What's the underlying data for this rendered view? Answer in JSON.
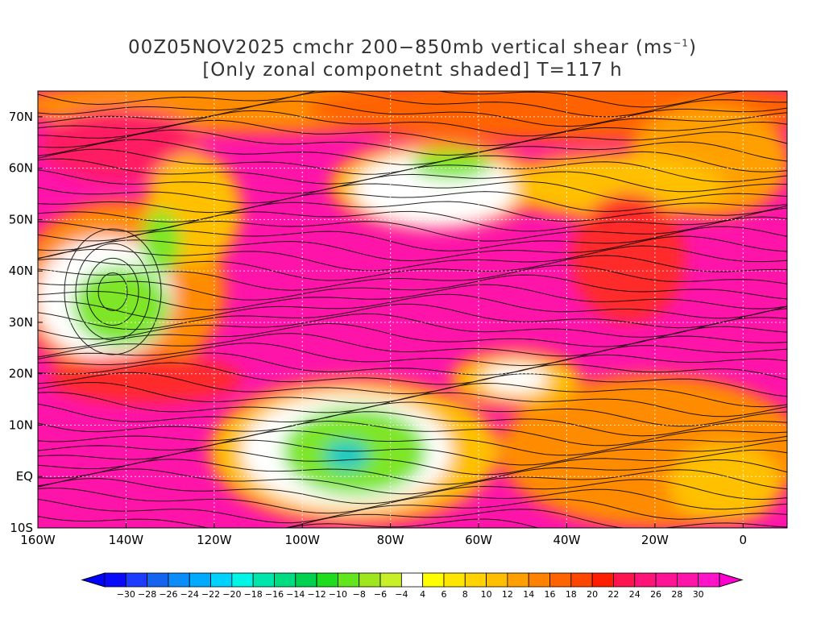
{
  "title": {
    "line1_prefix": "00Z05NOV2025 cmchr 200−850mb vertical shear (ms",
    "line1_sup": "−1",
    "line1_suffix": ")",
    "line2": "[Only zonal componetnt shaded] T=117 h"
  },
  "axes": {
    "lat_labels": [
      "70N",
      "60N",
      "50N",
      "40N",
      "30N",
      "20N",
      "10N",
      "EQ",
      "10S"
    ],
    "lat_values": [
      70,
      60,
      50,
      40,
      30,
      20,
      10,
      0,
      -10
    ],
    "lon_labels": [
      "160W",
      "140W",
      "120W",
      "100W",
      "80W",
      "60W",
      "40W",
      "20W",
      "0"
    ],
    "lon_values": [
      -160,
      -140,
      -120,
      -100,
      -80,
      -60,
      -40,
      -20,
      0
    ],
    "lon_range": [
      -160,
      10
    ],
    "lat_range": [
      -10,
      75
    ]
  },
  "colorbar": {
    "labels": [
      "−30",
      "−28",
      "−26",
      "−24",
      "−22",
      "−20",
      "−18",
      "−16",
      "−14",
      "−12",
      "−10",
      "−8",
      "−6",
      "−4",
      "4",
      "6",
      "8",
      "10",
      "12",
      "14",
      "16",
      "18",
      "20",
      "22",
      "24",
      "26",
      "28",
      "30"
    ],
    "colors": [
      "#0a0afa",
      "#1e3cff",
      "#1464f0",
      "#0a8cfa",
      "#00aaff",
      "#00d2ff",
      "#00f5e6",
      "#00e6aa",
      "#00dc82",
      "#00d250",
      "#1edc1e",
      "#64e61e",
      "#a0e61e",
      "#c8f028",
      "#ffffff",
      "#ffff00",
      "#ffe600",
      "#ffd200",
      "#ffbe00",
      "#ffa000",
      "#ff8200",
      "#ff6400",
      "#ff4600",
      "#ff1e00",
      "#ff1450",
      "#ff1478",
      "#ff1496",
      "#ff14aa",
      "#ff14c8"
    ],
    "min_arrow_color": "#0000ff",
    "max_arrow_color": "#ff00d0"
  },
  "field_palette": {
    "magenta": "#ff14aa",
    "pinkred": "#ff1e64",
    "red": "#ff2a2a",
    "orange": "#ff8c00",
    "yelloworange": "#ffc000",
    "yellow": "#ffee00",
    "white": "#ffffff",
    "green": "#7ee626",
    "cyan": "#00c8c8"
  }
}
